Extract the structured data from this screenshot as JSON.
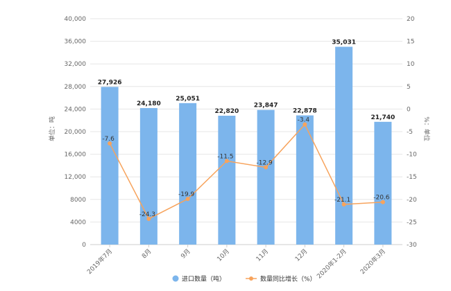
{
  "chart_data": {
    "type": "bar",
    "categories": [
      "2019年7月",
      "8月",
      "9月",
      "10月",
      "11月",
      "12月",
      "2020年1-2月",
      "2020年3月"
    ],
    "series": [
      {
        "name": "进口数量（吨）",
        "type": "bar",
        "axis": "left",
        "values": [
          27926,
          24180,
          25051,
          22820,
          23847,
          22878,
          35031,
          21740
        ],
        "labels": [
          "27,926",
          "24,180",
          "25,051",
          "22,820",
          "23,847",
          "22,878",
          "35,031",
          "21,740"
        ],
        "color": "#7cb5ec"
      },
      {
        "name": "数量同比增长（%）",
        "type": "line",
        "axis": "right",
        "values": [
          -7.6,
          -24.3,
          -19.9,
          -11.5,
          -12.9,
          -3.4,
          -21.1,
          -20.6
        ],
        "labels": [
          "-7.6",
          "-24.3",
          "-19.9",
          "-11.5",
          "-12.9",
          "-3.4",
          "-21.1",
          "-20.6"
        ],
        "color": "#f7a35c"
      }
    ],
    "ylabel": "单位：吨",
    "y2label": "%：单位",
    "ylim": [
      0,
      40000
    ],
    "y2lim": [
      -30,
      20
    ],
    "yticks": [
      "0",
      "4000",
      "8000",
      "12,000",
      "16,000",
      "20,000",
      "24,000",
      "28,000",
      "32,000",
      "36,000",
      "40,000"
    ],
    "y2ticks": [
      "-30",
      "-25",
      "-20",
      "-15",
      "-10",
      "-5",
      "0",
      "5",
      "10",
      "15",
      "20"
    ],
    "grid": true,
    "legend": "bottom-center"
  }
}
